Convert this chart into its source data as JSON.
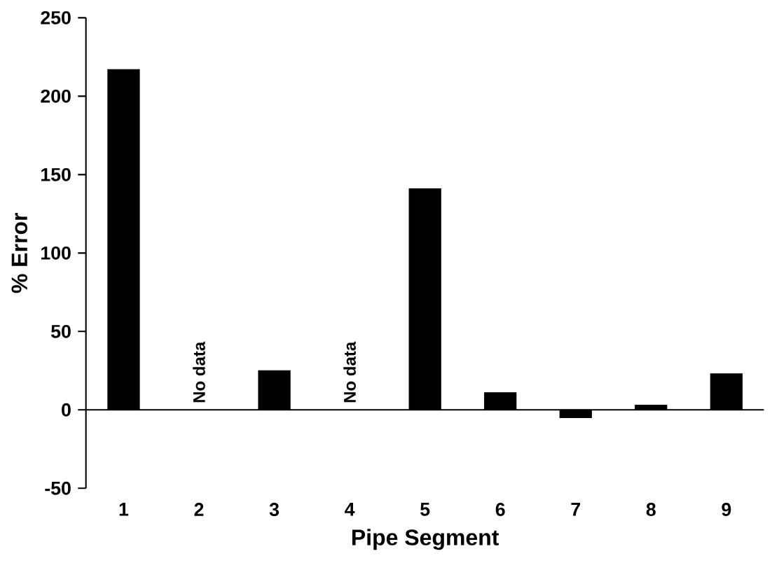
{
  "chart_data": {
    "type": "bar",
    "xlabel": "Pipe Segment",
    "ylabel": "% Error",
    "categories": [
      "1",
      "2",
      "3",
      "4",
      "5",
      "6",
      "7",
      "8",
      "9"
    ],
    "values": [
      217,
      null,
      25,
      null,
      141,
      11,
      -5,
      3,
      23
    ],
    "color": "#000000",
    "ylim": [
      -50,
      250
    ],
    "yticks": [
      -50,
      0,
      50,
      100,
      150,
      200,
      250
    ],
    "annotations": [
      "No data",
      "No data"
    ]
  }
}
